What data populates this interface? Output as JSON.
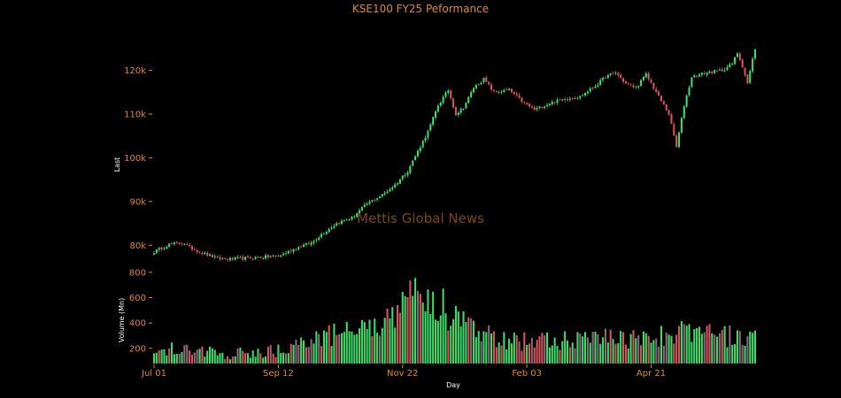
{
  "colors": {
    "background": "#000000",
    "text_accent": "#e08a2c",
    "label_text": "#ffffff",
    "up": "#3ddc6a",
    "down": "#d9545c",
    "watermark": "#7a4a14"
  },
  "chart_data": {
    "type": "candlestick",
    "title": "KSE100 FY25 Peformance",
    "watermark": "Mettis Global News",
    "price_panel": {
      "ylabel": "Last",
      "ylim": [
        75000,
        128000
      ],
      "yticks": [
        80000,
        90000,
        100000,
        110000,
        120000
      ],
      "ytick_labels": [
        "80k",
        "90k",
        "100k",
        "110k",
        "120k"
      ]
    },
    "volume_panel": {
      "ylabel": "Volume (Mn)",
      "ylim": [
        80,
        820
      ],
      "yticks": [
        200,
        400,
        600,
        800
      ],
      "ytick_labels": [
        "200",
        "400",
        "600",
        "800"
      ]
    },
    "xlabel": "Day",
    "x_ticks": [
      {
        "label": "Jul 01",
        "index": 0
      },
      {
        "label": "Sep 12",
        "index": 49
      },
      {
        "label": "Nov 22",
        "index": 98
      },
      {
        "label": "Feb 03",
        "index": 147
      },
      {
        "label": "Apr 21",
        "index": 196
      }
    ],
    "num_days": 238,
    "close_anchors": [
      [
        0,
        78500
      ],
      [
        6,
        80200
      ],
      [
        12,
        80500
      ],
      [
        14,
        79500
      ],
      [
        20,
        78000
      ],
      [
        25,
        77000
      ],
      [
        30,
        76800
      ],
      [
        40,
        77200
      ],
      [
        49,
        77500
      ],
      [
        52,
        78300
      ],
      [
        58,
        79800
      ],
      [
        62,
        80500
      ],
      [
        66,
        82500
      ],
      [
        72,
        85000
      ],
      [
        78,
        86300
      ],
      [
        84,
        89500
      ],
      [
        90,
        91500
      ],
      [
        95,
        93800
      ],
      [
        100,
        97000
      ],
      [
        104,
        101500
      ],
      [
        108,
        106000
      ],
      [
        112,
        112000
      ],
      [
        116,
        115500
      ],
      [
        119,
        110000
      ],
      [
        122,
        111500
      ],
      [
        126,
        116000
      ],
      [
        130,
        118000
      ],
      [
        134,
        115000
      ],
      [
        140,
        115500
      ],
      [
        146,
        112500
      ],
      [
        150,
        111000
      ],
      [
        156,
        112500
      ],
      [
        162,
        113500
      ],
      [
        168,
        114000
      ],
      [
        174,
        116500
      ],
      [
        178,
        118500
      ],
      [
        182,
        119500
      ],
      [
        186,
        117000
      ],
      [
        190,
        116000
      ],
      [
        194,
        119000
      ],
      [
        197,
        116000
      ],
      [
        200,
        113000
      ],
      [
        203,
        110000
      ],
      [
        206,
        102500
      ],
      [
        209,
        112000
      ],
      [
        212,
        118500
      ],
      [
        218,
        119500
      ],
      [
        224,
        120000
      ],
      [
        228,
        121500
      ],
      [
        230,
        124000
      ],
      [
        232,
        121000
      ],
      [
        234,
        117000
      ],
      [
        236,
        122500
      ],
      [
        237,
        125000
      ]
    ],
    "volume_anchors": [
      [
        0,
        200
      ],
      [
        10,
        210
      ],
      [
        20,
        170
      ],
      [
        30,
        160
      ],
      [
        40,
        170
      ],
      [
        50,
        180
      ],
      [
        60,
        240
      ],
      [
        70,
        310
      ],
      [
        80,
        340
      ],
      [
        90,
        380
      ],
      [
        98,
        520
      ],
      [
        103,
        740
      ],
      [
        108,
        650
      ],
      [
        114,
        520
      ],
      [
        120,
        420
      ],
      [
        128,
        350
      ],
      [
        138,
        260
      ],
      [
        148,
        250
      ],
      [
        158,
        260
      ],
      [
        168,
        270
      ],
      [
        178,
        280
      ],
      [
        188,
        270
      ],
      [
        198,
        280
      ],
      [
        206,
        340
      ],
      [
        215,
        310
      ],
      [
        225,
        300
      ],
      [
        237,
        270
      ]
    ]
  }
}
